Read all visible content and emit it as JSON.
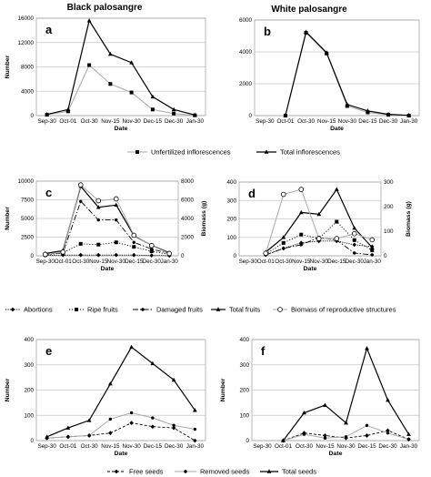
{
  "column_titles": [
    "Black palosangre",
    "White palosangre"
  ],
  "chart_data": [
    {
      "id": "a",
      "type": "line",
      "letter": "a",
      "categories": [
        "Sep-30",
        "Oct-01",
        "Oct-30",
        "Nov-15",
        "Nov-30",
        "Dec-15",
        "Dec-30",
        "Jan-30"
      ],
      "ylabel": "Number",
      "xlabel": "Date",
      "ylim": [
        0,
        16000
      ],
      "yticks": [
        0,
        4000,
        8000,
        12000,
        16000
      ],
      "series": [
        {
          "key": "unfertilized",
          "values": [
            150,
            700,
            8300,
            5200,
            3800,
            1000,
            350,
            50
          ]
        },
        {
          "key": "total",
          "values": [
            200,
            1000,
            15600,
            10100,
            8700,
            3100,
            1000,
            100
          ]
        }
      ]
    },
    {
      "id": "b",
      "type": "line",
      "letter": "b",
      "categories": [
        "Sep-30",
        "Oct-01",
        "Oct-30",
        "Nov-15",
        "Nov-30",
        "Dec-15",
        "Dec-30",
        "Jan-30"
      ],
      "ylabel": "",
      "xlabel": "Date",
      "ylim": [
        0,
        6000
      ],
      "yticks": [
        0,
        2000,
        4000,
        6000
      ],
      "series": [
        {
          "key": "unfertilized",
          "values": [
            null,
            0,
            5200,
            3900,
            600,
            200,
            50,
            0
          ]
        },
        {
          "key": "total",
          "values": [
            null,
            0,
            5250,
            3950,
            700,
            300,
            80,
            20
          ]
        }
      ]
    },
    {
      "id": "c",
      "type": "line",
      "letter": "c",
      "categories": [
        "Sep-30",
        "Oct-01",
        "Oct-30",
        "Nov-15",
        "Nov-30",
        "Dec-15",
        "Dec-30",
        "Jan-30"
      ],
      "ylabel": "Number",
      "y2label": "Biomass (g)",
      "xlabel": "Date",
      "ylim": [
        0,
        10000
      ],
      "yticks": [
        0,
        2500,
        5000,
        7500,
        10000
      ],
      "y2lim": [
        0,
        8000
      ],
      "y2ticks": [
        0,
        2000,
        4000,
        6000,
        8000
      ],
      "series": [
        {
          "key": "abortions",
          "axis": "left",
          "values": [
            50,
            100,
            100,
            100,
            100,
            100,
            50,
            20
          ]
        },
        {
          "key": "ripe",
          "axis": "left",
          "values": [
            100,
            400,
            1600,
            1500,
            1800,
            1200,
            600,
            200
          ]
        },
        {
          "key": "damaged",
          "axis": "left",
          "values": [
            200,
            400,
            7300,
            4800,
            4800,
            1800,
            900,
            300
          ]
        },
        {
          "key": "total_fruits",
          "axis": "left",
          "values": [
            300,
            700,
            9300,
            6500,
            6800,
            2700,
            1400,
            400
          ]
        },
        {
          "key": "biomass",
          "axis": "right",
          "values": [
            150,
            400,
            7600,
            5900,
            6100,
            2200,
            1100,
            250
          ]
        }
      ]
    },
    {
      "id": "d",
      "type": "line",
      "letter": "d",
      "categories": [
        "Sep-30",
        "Oct-01",
        "Oct-30",
        "Nov-15",
        "Nov-30",
        "Dec-15",
        "Dec-30",
        "Jan-30"
      ],
      "ylabel": "",
      "y2label": "Biomass (g)",
      "xlabel": "Date",
      "ylim": [
        0,
        400
      ],
      "yticks": [
        0,
        100,
        200,
        300,
        400
      ],
      "y2lim": [
        0,
        300
      ],
      "y2ticks": [
        0,
        100,
        200,
        300
      ],
      "series": [
        {
          "key": "abortions",
          "axis": "left",
          "values": [
            null,
            5,
            40,
            70,
            80,
            80,
            60,
            50
          ]
        },
        {
          "key": "ripe",
          "axis": "left",
          "values": [
            null,
            10,
            70,
            115,
            95,
            185,
            85,
            30
          ]
        },
        {
          "key": "damaged",
          "axis": "left",
          "values": [
            null,
            5,
            40,
            60,
            100,
            85,
            15,
            5
          ]
        },
        {
          "key": "total_fruits",
          "axis": "left",
          "values": [
            null,
            20,
            100,
            235,
            225,
            360,
            150,
            45
          ]
        },
        {
          "key": "biomass",
          "axis": "right",
          "values": [
            null,
            10,
            250,
            270,
            70,
            70,
            90,
            65
          ]
        }
      ]
    },
    {
      "id": "e",
      "type": "line",
      "letter": "e",
      "categories": [
        "Sep-30",
        "Oct-01",
        "Oct-30",
        "Nov-15",
        "Nov-30",
        "Dec-15",
        "Dec-30",
        "Jan-30"
      ],
      "ylabel": "Number",
      "xlabel": "Date",
      "ylim": [
        0,
        400
      ],
      "yticks": [
        0,
        100,
        200,
        300,
        400
      ],
      "series": [
        {
          "key": "free",
          "values": [
            10,
            15,
            20,
            30,
            70,
            55,
            50,
            0
          ]
        },
        {
          "key": "removed",
          "values": [
            10,
            15,
            20,
            85,
            110,
            90,
            60,
            45
          ]
        },
        {
          "key": "total_seeds",
          "values": [
            15,
            50,
            80,
            225,
            370,
            305,
            240,
            120
          ]
        }
      ]
    },
    {
      "id": "f",
      "type": "line",
      "letter": "f",
      "categories": [
        "Sep-30",
        "Oct-01",
        "Oct-30",
        "Nov-15",
        "Nov-30",
        "Dec-15",
        "Dec-30",
        "Jan-30"
      ],
      "ylabel": "Number",
      "xlabel": "Date",
      "ylim": [
        0,
        400
      ],
      "yticks": [
        0,
        100,
        200,
        300,
        400
      ],
      "series": [
        {
          "key": "free",
          "values": [
            null,
            0,
            30,
            20,
            10,
            20,
            40,
            5
          ]
        },
        {
          "key": "removed",
          "values": [
            null,
            0,
            25,
            10,
            15,
            60,
            30,
            5
          ]
        },
        {
          "key": "total_seeds",
          "values": [
            null,
            0,
            110,
            140,
            70,
            365,
            160,
            25
          ]
        }
      ]
    }
  ],
  "legends": {
    "inflorescences": [
      "Unfertilized inflorescences",
      "Total inflorescences"
    ],
    "fruits": [
      "Abortions",
      "Ripe fruits",
      "Damaged fruits",
      "Total fruits",
      "Biomass of reproductive structures"
    ],
    "seeds": [
      "Free seeds",
      "Removed seeds",
      "Total seeds"
    ]
  }
}
